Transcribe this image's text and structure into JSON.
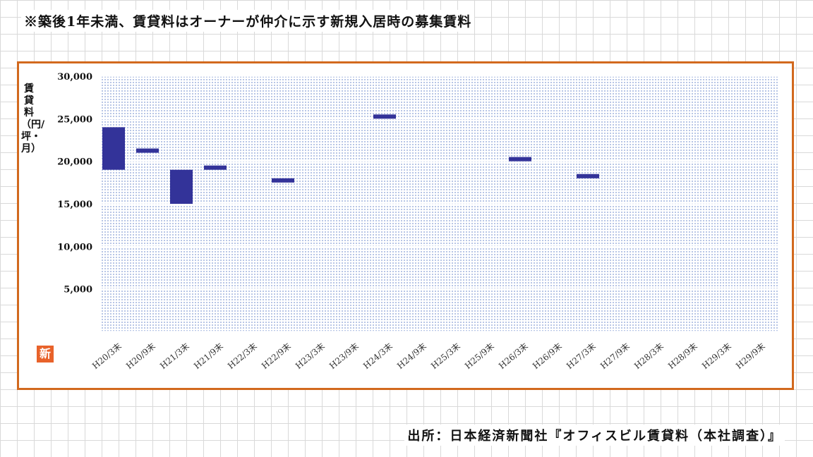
{
  "note": "※築後1年未満、賃貸料はオーナーが仲介に示す新規入居時の募集賃料",
  "source": "出所：日本経済新聞社『オフィスビル賃貸料（本社調査）』",
  "new_badge": "新",
  "colors": {
    "frame": "#d2691e",
    "bar": "#333399",
    "plot_bg": "#c9d6f0",
    "badge": "#e8622a"
  },
  "chart_data": {
    "type": "bar",
    "subtype": "floating-range",
    "title": "",
    "xlabel": "",
    "ylabel": "賃貸料（円/坪・月）",
    "ylim": [
      0,
      30000
    ],
    "yticks": [
      "5,000",
      "10,000",
      "15,000",
      "20,000",
      "25,000",
      "30,000"
    ],
    "ytick_values": [
      5000,
      10000,
      15000,
      20000,
      25000,
      30000
    ],
    "categories": [
      "H20/3末",
      "H20/9末",
      "H21/3末",
      "H21/9末",
      "H22/3末",
      "H22/9末",
      "H23/3末",
      "H23/9末",
      "H24/3末",
      "H24/9末",
      "H25/3末",
      "H25/9末",
      "H26/3末",
      "H26/9末",
      "H27/3末",
      "H27/9末",
      "H28/3末",
      "H28/9末",
      "H29/3末",
      "H29/9末"
    ],
    "ranges": [
      [
        19000,
        24000
      ],
      [
        21000,
        21500
      ],
      [
        15000,
        19000
      ],
      [
        19000,
        19500
      ],
      null,
      [
        17500,
        18000
      ],
      null,
      null,
      [
        25000,
        25500
      ],
      null,
      null,
      null,
      [
        20000,
        20500
      ],
      null,
      [
        18000,
        18500
      ],
      null,
      null,
      null,
      null,
      null
    ],
    "grid": true
  }
}
